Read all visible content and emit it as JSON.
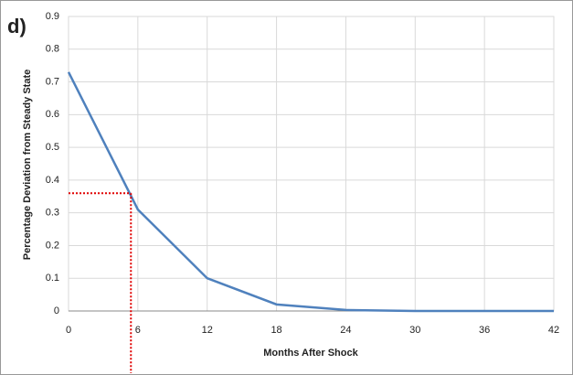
{
  "chart_data": {
    "type": "line",
    "annotation": "d)",
    "x_label": "Months After Shock",
    "y_label": "Percentage Deviation from Steady State",
    "x": [
      0,
      6,
      12,
      18,
      24,
      30,
      36,
      42
    ],
    "values": [
      0.73,
      0.31,
      0.1,
      0.02,
      0.003,
      0,
      0,
      0
    ],
    "color": "#4f81bd",
    "xlim": [
      0,
      42
    ],
    "xticks": [
      0,
      6,
      12,
      18,
      24,
      30,
      36,
      42
    ],
    "ylim": [
      0,
      0.9
    ],
    "yticks": [
      0,
      0.1,
      0.2,
      0.3,
      0.4,
      0.5,
      0.6,
      0.7,
      0.8,
      0.9
    ],
    "grid": true,
    "reference_x": 5.4,
    "reference_y": 0.36,
    "reference_color": "#e00000"
  }
}
